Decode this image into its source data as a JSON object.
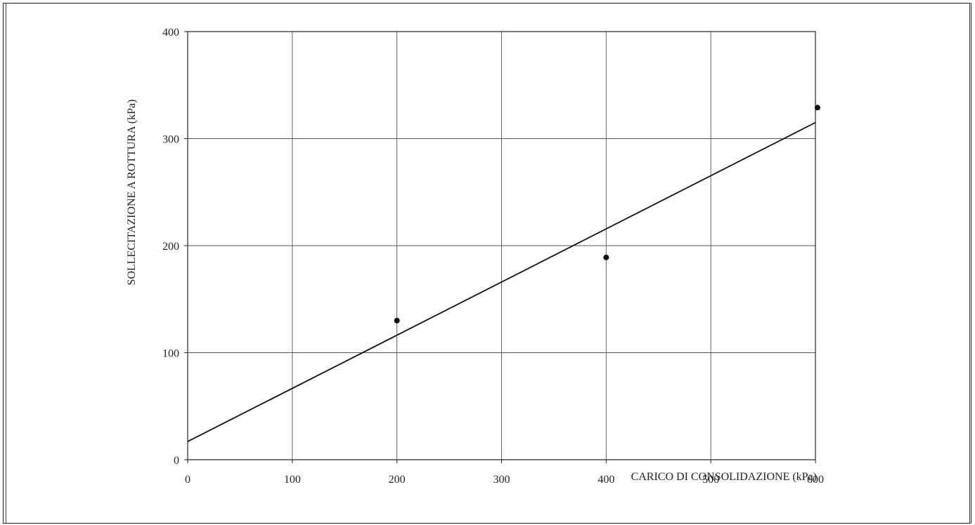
{
  "chart_data": {
    "type": "scatter",
    "title": "",
    "xlabel": "CARICO DI CONSOLIDAZIONE (kPa)",
    "ylabel": "SOLLECITAZIONE A ROTTURA (kPa)",
    "xlim": [
      0,
      600
    ],
    "ylim": [
      0,
      400
    ],
    "x_ticks": [
      0,
      100,
      200,
      300,
      400,
      500,
      600
    ],
    "y_ticks": [
      0,
      100,
      200,
      300,
      400
    ],
    "grid": true,
    "legend": "none",
    "series": [
      {
        "type": "scatter",
        "points": [
          {
            "x": 200,
            "y": 130
          },
          {
            "x": 400,
            "y": 189
          },
          {
            "x": 602,
            "y": 329
          }
        ]
      },
      {
        "type": "line",
        "points": [
          {
            "x": 0,
            "y": 17
          },
          {
            "x": 600,
            "y": 315
          }
        ]
      }
    ]
  }
}
